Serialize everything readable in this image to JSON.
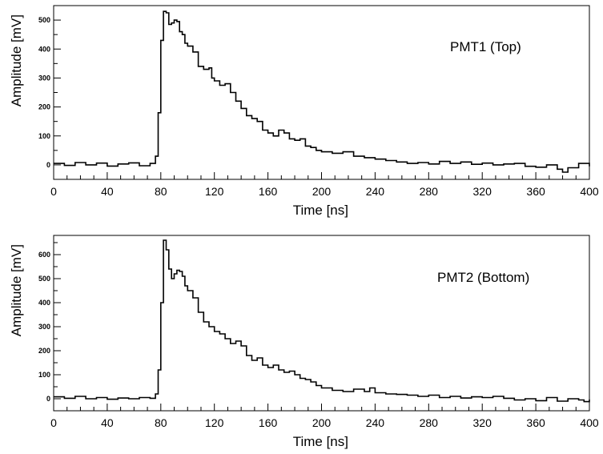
{
  "chart_data": [
    {
      "type": "line",
      "title": "",
      "label": "PMT1 (Top)",
      "xlabel": "Time [ns]",
      "ylabel": "Amplitude [mV]",
      "xlim": [
        0,
        400
      ],
      "ylim": [
        -50,
        550
      ],
      "xticks": [
        0,
        40,
        80,
        120,
        160,
        200,
        240,
        280,
        320,
        360,
        400
      ],
      "yticks": [
        0,
        100,
        200,
        300,
        400,
        500
      ],
      "grid": false,
      "series": [
        {
          "x": [
            0,
            8,
            16,
            24,
            32,
            40,
            48,
            56,
            64,
            72,
            76,
            78,
            80,
            82,
            84,
            86,
            88,
            90,
            92,
            94,
            96,
            98,
            100,
            104,
            108,
            112,
            116,
            118,
            120,
            124,
            128,
            132,
            136,
            140,
            144,
            148,
            152,
            156,
            160,
            164,
            168,
            172,
            176,
            180,
            184,
            188,
            192,
            196,
            200,
            208,
            216,
            224,
            232,
            240,
            248,
            256,
            264,
            272,
            280,
            288,
            296,
            304,
            312,
            320,
            328,
            336,
            344,
            352,
            360,
            368,
            376,
            380,
            384,
            392,
            400
          ],
          "y": [
            5,
            -2,
            8,
            0,
            6,
            -4,
            3,
            7,
            -3,
            5,
            30,
            180,
            430,
            530,
            525,
            485,
            490,
            500,
            495,
            460,
            450,
            420,
            410,
            390,
            340,
            330,
            335,
            300,
            290,
            275,
            280,
            250,
            220,
            195,
            170,
            160,
            150,
            120,
            110,
            100,
            120,
            110,
            90,
            85,
            90,
            65,
            60,
            50,
            45,
            40,
            45,
            30,
            25,
            20,
            15,
            10,
            5,
            8,
            3,
            12,
            5,
            10,
            2,
            6,
            0,
            3,
            5,
            -5,
            -8,
            0,
            -15,
            -25,
            -10,
            5,
            -5
          ]
        }
      ]
    },
    {
      "type": "line",
      "title": "",
      "label": "PMT2 (Bottom)",
      "xlabel": "Time [ns]",
      "ylabel": "Amplitude [mV]",
      "xlim": [
        0,
        400
      ],
      "ylim": [
        -50,
        680
      ],
      "xticks": [
        0,
        40,
        80,
        120,
        160,
        200,
        240,
        280,
        320,
        360,
        400
      ],
      "yticks": [
        0,
        100,
        200,
        300,
        400,
        500,
        600
      ],
      "grid": false,
      "series": [
        {
          "x": [
            0,
            8,
            16,
            24,
            32,
            40,
            48,
            56,
            64,
            72,
            76,
            78,
            80,
            82,
            84,
            86,
            88,
            90,
            92,
            94,
            96,
            98,
            100,
            104,
            108,
            112,
            116,
            120,
            124,
            128,
            132,
            136,
            140,
            144,
            148,
            152,
            156,
            160,
            164,
            168,
            172,
            176,
            180,
            184,
            188,
            192,
            196,
            200,
            208,
            216,
            224,
            232,
            236,
            240,
            248,
            256,
            264,
            272,
            280,
            288,
            296,
            304,
            312,
            320,
            328,
            336,
            344,
            352,
            360,
            368,
            376,
            384,
            392,
            396,
            400
          ],
          "y": [
            8,
            2,
            10,
            0,
            5,
            -2,
            3,
            0,
            5,
            2,
            20,
            120,
            400,
            660,
            620,
            540,
            500,
            520,
            535,
            530,
            510,
            470,
            450,
            420,
            360,
            320,
            300,
            280,
            270,
            250,
            230,
            240,
            220,
            180,
            160,
            170,
            140,
            130,
            140,
            120,
            110,
            115,
            100,
            85,
            80,
            70,
            55,
            45,
            35,
            30,
            40,
            30,
            45,
            25,
            20,
            18,
            15,
            10,
            15,
            5,
            10,
            3,
            8,
            5,
            10,
            2,
            -5,
            0,
            -8,
            5,
            -10,
            0,
            -5,
            -12,
            -3
          ]
        }
      ]
    }
  ]
}
